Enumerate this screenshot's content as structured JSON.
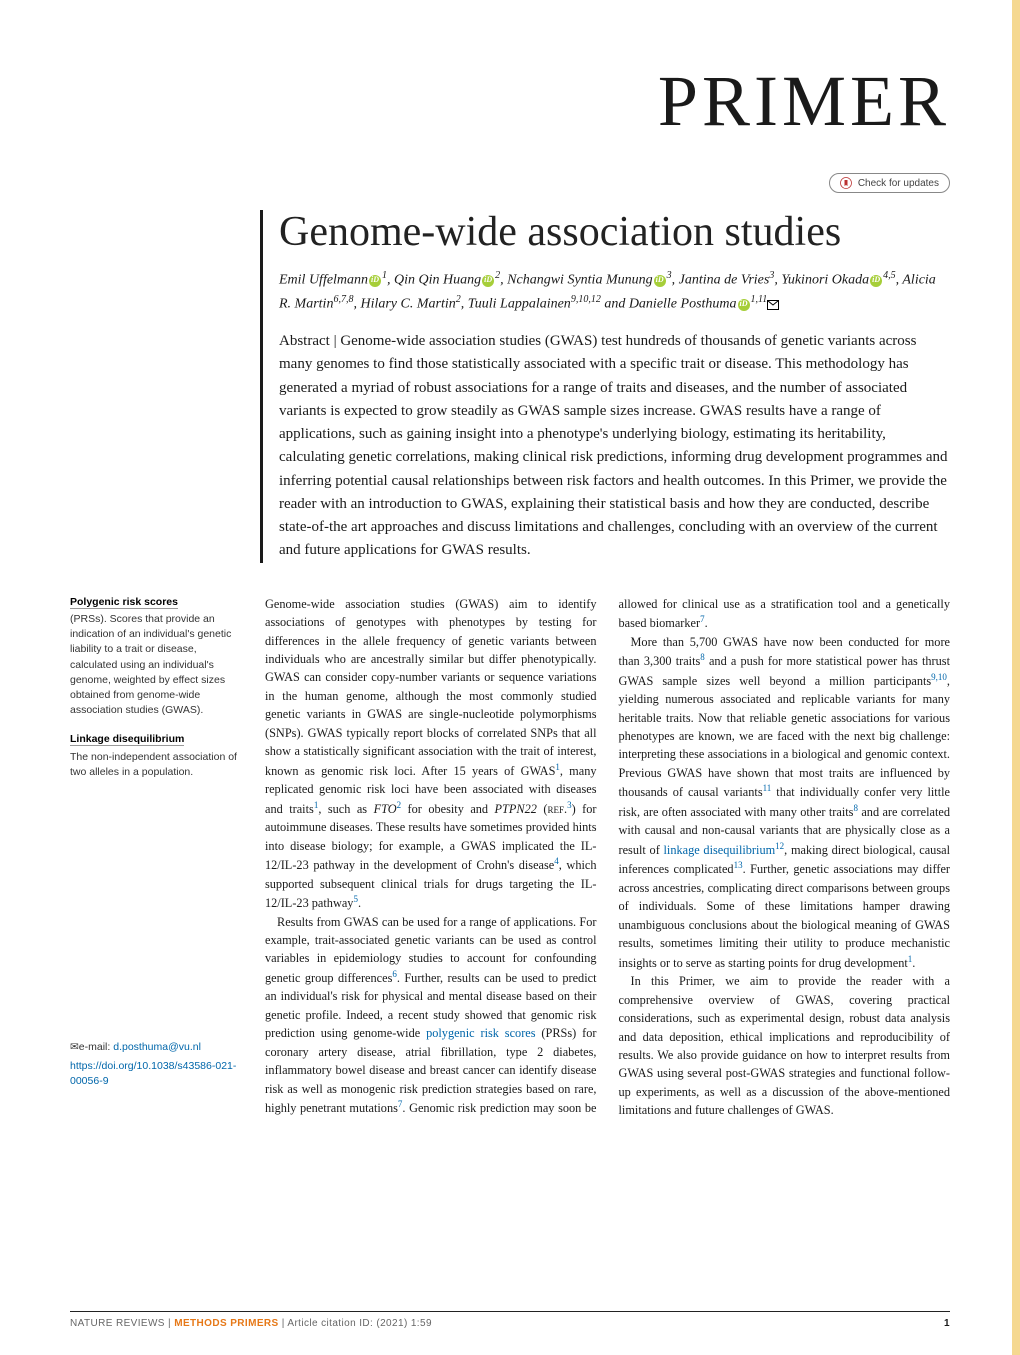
{
  "colors": {
    "edge_bar": "#f5d890",
    "orcid_bg": "#a6ce39",
    "link": "#0066aa",
    "journal_orange": "#e67817",
    "text": "#1a1a1a",
    "bg": "#ffffff"
  },
  "masthead": "PRIMER",
  "updates_label": "Check for updates",
  "title": "Genome-wide association studies",
  "authors_html": "Emil Uffelmann{ORCID}<span class='aff'>1</span>, Qin Qin Huang{ORCID}<span class='aff'>2</span>, Nchangwi Syntia Munung{ORCID}<span class='aff'>3</span>, Jantina de Vries<span class='aff'>3</span>, Yukinori Okada{ORCID}<span class='aff'>4,5</span>, Alicia R. Martin<span class='aff'>6,7,8</span>, Hilary C. Martin<span class='aff'>2</span>, Tuuli Lappalainen<span class='aff'>9,10,12</span> and Danielle Posthuma{ORCID}<span class='aff'>1,11</span>{MAIL}",
  "abstract": "Abstract | Genome-wide association studies (GWAS) test hundreds of thousands of genetic variants across many genomes to find those statistically associated with a specific trait or disease. This methodology has generated a myriad of robust associations for a range of traits and diseases, and the number of associated variants is expected to grow steadily as GWAS sample sizes increase. GWAS results have a range of applications, such as gaining insight into a phenotype's underlying biology, estimating its heritability, calculating genetic correlations, making clinical risk predictions, informing drug development programmes and inferring potential causal relationships between risk factors and health outcomes. In this Primer, we provide the reader with an introduction to GWAS, explaining their statistical basis and how they are conducted, describe state-of-the art approaches and discuss limitations and challenges, concluding with an overview of the current and future applications for GWAS results.",
  "glossary": [
    {
      "term": "Polygenic risk scores",
      "body": "(PRSs). Scores that provide an indication of an individual's genetic liability to a trait or disease, calculated using an individual's genome, weighted by effect sizes obtained from genome-wide association studies (GWAS)."
    },
    {
      "term": "Linkage disequilibrium",
      "body": "The non-independent association of two alleles in a population."
    }
  ],
  "correspondence": {
    "label": "✉e-mail:",
    "email": "d.posthuma@vu.nl"
  },
  "doi": "https://doi.org/10.1038/s43586-021-00056-9",
  "body_paragraphs": [
    "Genome-wide association studies (GWAS) aim to identify associations of genotypes with phenotypes by testing for differences in the allele frequency of genetic variants between individuals who are ancestrally similar but differ phenotypically. GWAS can consider copy-number variants or sequence variations in the human genome, although the most commonly studied genetic variants in GWAS are single-nucleotide polymorphisms (SNPs). GWAS typically report blocks of correlated SNPs that all show a statistically significant association with the trait of interest, known as genomic risk loci. After 15 years of GWAS<sup class='ref'>1</sup>, many replicated genomic risk loci have been associated with diseases and traits<sup class='ref'>1</sup>, such as <i>FTO</i><sup class='ref'>2</sup> for obesity and <i>PTPN22</i> (<span class='smallcap'>ref.</span><sup class='ref'>3</sup>) for autoimmune diseases. These results have sometimes provided hints into disease biology; for example, a GWAS implicated the IL-12/IL-23 pathway in the development of Crohn's disease<sup class='ref'>4</sup>, which supported subsequent clinical trials for drugs targeting the IL-12/IL-23 pathway<sup class='ref'>5</sup>.",
    "Results from GWAS can be used for a range of applications. For example, trait-associated genetic variants can be used as control variables in epidemiology studies to account for confounding genetic group differences<sup class='ref'>6</sup>. Further, results can be used to predict an individual's risk for physical and mental disease based on their genetic profile. Indeed, a recent study showed that genomic risk prediction using genome-wide <span class='term-inline'>polygenic risk scores</span> (PRSs) for coronary artery disease, atrial fibrillation, type 2 diabetes, inflammatory bowel disease and breast cancer can identify disease risk as well as monogenic risk prediction strategies based on rare, highly penetrant mutations<sup class='ref'>7</sup>. Genomic risk prediction may soon be allowed for clinical use as a stratification tool and a genetically based biomarker<sup class='ref'>7</sup>.",
    "More than 5,700 GWAS have now been conducted for more than 3,300 traits<sup class='ref'>8</sup> and a push for more statistical power has thrust GWAS sample sizes well beyond a million participants<sup class='ref'>9,10</sup>, yielding numerous associated and replicable variants for many heritable traits. Now that reliable genetic associations for various phenotypes are known, we are faced with the next big challenge: interpreting these associations in a biological and genomic context. Previous GWAS have shown that most traits are influenced by thousands of causal variants<sup class='ref'>11</sup> that individually confer very little risk, are often associated with many other traits<sup class='ref'>8</sup> and are correlated with causal and non-causal variants that are physically close as a result of <span class='term-inline'>linkage disequilibrium</span><sup class='ref'>12</sup>, making direct biological, causal inferences complicated<sup class='ref'>13</sup>. Further, genetic associations may differ across ancestries, complicating direct comparisons between groups of individuals. Some of these limitations hamper drawing unambiguous conclusions about the biological meaning of GWAS results, sometimes limiting their utility to produce mechanistic insights or to serve as starting points for drug development<sup class='ref'>1</sup>.",
    "In this Primer, we aim to provide the reader with a comprehensive overview of GWAS, covering practical considerations, such as experimental design, robust data analysis and data deposition, ethical implications and reproducibility of results. We also provide guidance on how to interpret results from GWAS using several post-GWAS strategies and functional follow-up experiments, as well as a discussion of the above-mentioned limitations and future challenges of GWAS."
  ],
  "footer": {
    "journal_prefix": "NATURE REVIEWS | ",
    "journal_name": "METHODS PRIMERS",
    "citation": " | Article citation ID:            (2021) 1:59",
    "page_number": "1"
  }
}
